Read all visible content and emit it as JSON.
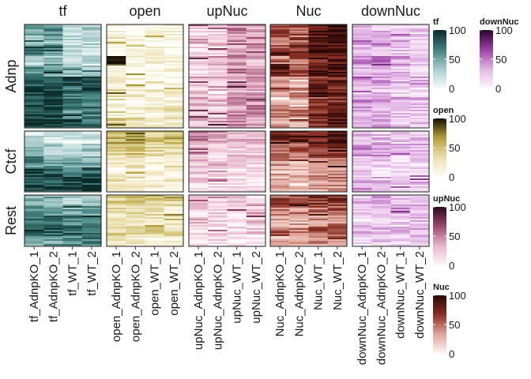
{
  "chart_data": {
    "type": "heatmap",
    "column_panels": [
      {
        "name": "tf",
        "samples": [
          "tf_AdnpKO_1",
          "tf_AdnpKO_2",
          "tf_WT_1",
          "tf_WT_2"
        ],
        "palette": [
          "#f7fbfb",
          "#a9cdcb",
          "#3f7f7c",
          "#0a2a28"
        ],
        "legend_title": "tf"
      },
      {
        "name": "open",
        "samples": [
          "open_AdnpKO_1",
          "open_AdnpKO_2",
          "open_WT_1",
          "open_WT_2"
        ],
        "palette": [
          "#fffef8",
          "#ebe0b0",
          "#b5a13a",
          "#141005"
        ],
        "legend_title": "open"
      },
      {
        "name": "upNuc",
        "samples": [
          "upNuc_AdnpKO_1",
          "upNuc_AdnpKO_2",
          "upNuc_WT_1",
          "upNuc_WT_2"
        ],
        "palette": [
          "#fff8fa",
          "#e8b8cb",
          "#9a4a6e",
          "#2a0a1a"
        ],
        "legend_title": "upNuc"
      },
      {
        "name": "Nuc",
        "samples": [
          "Nuc_AdnpKO_1",
          "Nuc_AdnpKO_2",
          "Nuc_WT_1",
          "Nuc_WT_2"
        ],
        "palette": [
          "#fff8f6",
          "#e0a79c",
          "#8a2f24",
          "#2a0806"
        ],
        "legend_title": "Nuc"
      },
      {
        "name": "downNuc",
        "samples": [
          "downNuc_AdnpKO_1",
          "downNuc_AdnpKO_2",
          "downNuc_WT_1",
          "downNuc_WT_2"
        ],
        "palette": [
          "#fdf8fd",
          "#e3b6e6",
          "#9c3fa6",
          "#2a0530"
        ],
        "legend_title": "downNuc"
      }
    ],
    "row_panels": [
      "Adnp",
      "Ctcf",
      "Rest"
    ],
    "value_range": [
      0,
      100
    ],
    "legend_ticks": [
      0,
      50,
      100
    ],
    "legend_order": [
      "tf",
      "downNuc",
      "open",
      "upNuc",
      "Nuc"
    ],
    "cells": {
      "Adnp": {
        "tf": [
          [
            55,
            60,
            25,
            30
          ],
          [
            40,
            45,
            20,
            25
          ],
          [
            70,
            65,
            30,
            20
          ],
          [
            30,
            35,
            15,
            20
          ],
          [
            60,
            55,
            35,
            40
          ],
          [
            85,
            90,
            80,
            85
          ],
          [
            95,
            92,
            75,
            80
          ],
          [
            90,
            95,
            70,
            75
          ],
          [
            88,
            85,
            60,
            70
          ],
          [
            92,
            90,
            78,
            72
          ]
        ],
        "open": [
          [
            10,
            5,
            15,
            10
          ],
          [
            20,
            10,
            5,
            8
          ],
          [
            5,
            8,
            10,
            5
          ],
          [
            90,
            15,
            10,
            5
          ],
          [
            10,
            12,
            8,
            10
          ],
          [
            15,
            10,
            5,
            10
          ],
          [
            30,
            20,
            15,
            10
          ],
          [
            8,
            5,
            5,
            10
          ],
          [
            10,
            15,
            20,
            25
          ],
          [
            40,
            30,
            15,
            20
          ]
        ],
        "upNuc": [
          [
            20,
            15,
            45,
            40
          ],
          [
            30,
            25,
            50,
            45
          ],
          [
            15,
            20,
            35,
            40
          ],
          [
            25,
            30,
            40,
            30
          ],
          [
            10,
            20,
            45,
            50
          ],
          [
            30,
            25,
            35,
            40
          ],
          [
            20,
            15,
            30,
            35
          ],
          [
            35,
            30,
            40,
            45
          ],
          [
            25,
            20,
            40,
            50
          ],
          [
            30,
            35,
            45,
            40
          ]
        ],
        "Nuc": [
          [
            60,
            55,
            90,
            92
          ],
          [
            50,
            45,
            85,
            88
          ],
          [
            65,
            70,
            95,
            93
          ],
          [
            45,
            50,
            80,
            85
          ],
          [
            70,
            60,
            88,
            90
          ],
          [
            30,
            20,
            70,
            75
          ],
          [
            40,
            35,
            80,
            78
          ],
          [
            20,
            25,
            65,
            70
          ],
          [
            50,
            45,
            75,
            80
          ],
          [
            35,
            30,
            70,
            85
          ]
        ],
        "downNuc": [
          [
            30,
            25,
            20,
            20
          ],
          [
            45,
            40,
            30,
            25
          ],
          [
            25,
            30,
            20,
            15
          ],
          [
            50,
            60,
            35,
            30
          ],
          [
            35,
            30,
            25,
            20
          ],
          [
            40,
            35,
            30,
            25
          ],
          [
            30,
            25,
            20,
            15
          ],
          [
            45,
            40,
            35,
            30
          ],
          [
            35,
            30,
            25,
            20
          ],
          [
            30,
            35,
            25,
            25
          ]
        ]
      },
      "Ctcf": {
        "tf": [
          [
            20,
            15,
            10,
            15
          ],
          [
            40,
            35,
            25,
            30
          ],
          [
            60,
            55,
            50,
            45
          ],
          [
            85,
            80,
            75,
            80
          ],
          [
            90,
            85,
            80,
            85
          ]
        ],
        "open": [
          [
            60,
            70,
            45,
            50
          ],
          [
            40,
            45,
            35,
            30
          ],
          [
            30,
            25,
            20,
            25
          ],
          [
            20,
            15,
            15,
            10
          ],
          [
            25,
            20,
            15,
            20
          ]
        ],
        "upNuc": [
          [
            45,
            40,
            35,
            30
          ],
          [
            30,
            25,
            20,
            20
          ],
          [
            25,
            20,
            15,
            20
          ],
          [
            20,
            15,
            15,
            10
          ],
          [
            15,
            10,
            10,
            10
          ]
        ],
        "Nuc": [
          [
            75,
            70,
            80,
            85
          ],
          [
            55,
            50,
            65,
            70
          ],
          [
            40,
            35,
            50,
            55
          ],
          [
            30,
            25,
            40,
            45
          ],
          [
            25,
            20,
            35,
            40
          ]
        ],
        "downNuc": [
          [
            30,
            25,
            20,
            25
          ],
          [
            45,
            40,
            30,
            30
          ],
          [
            25,
            20,
            15,
            20
          ],
          [
            20,
            15,
            15,
            15
          ],
          [
            35,
            30,
            25,
            25
          ]
        ]
      },
      "Rest": {
        "tf": [
          [
            40,
            45,
            35,
            30
          ],
          [
            60,
            55,
            50,
            55
          ],
          [
            75,
            70,
            65,
            70
          ],
          [
            85,
            80,
            75,
            80
          ],
          [
            55,
            50,
            60,
            65
          ]
        ],
        "open": [
          [
            40,
            45,
            40,
            35
          ],
          [
            30,
            35,
            30,
            25
          ],
          [
            25,
            20,
            25,
            20
          ],
          [
            35,
            30,
            35,
            30
          ],
          [
            20,
            25,
            20,
            15
          ]
        ],
        "upNuc": [
          [
            20,
            25,
            25,
            20
          ],
          [
            15,
            20,
            15,
            15
          ],
          [
            25,
            20,
            20,
            25
          ],
          [
            20,
            15,
            15,
            20
          ],
          [
            10,
            15,
            10,
            10
          ]
        ],
        "Nuc": [
          [
            60,
            55,
            65,
            70
          ],
          [
            45,
            40,
            50,
            55
          ],
          [
            35,
            30,
            40,
            45
          ],
          [
            50,
            45,
            55,
            60
          ],
          [
            30,
            25,
            35,
            40
          ]
        ],
        "downNuc": [
          [
            30,
            35,
            30,
            25
          ],
          [
            25,
            30,
            25,
            20
          ],
          [
            20,
            25,
            20,
            25
          ],
          [
            30,
            25,
            25,
            30
          ],
          [
            20,
            20,
            15,
            20
          ]
        ]
      }
    }
  }
}
